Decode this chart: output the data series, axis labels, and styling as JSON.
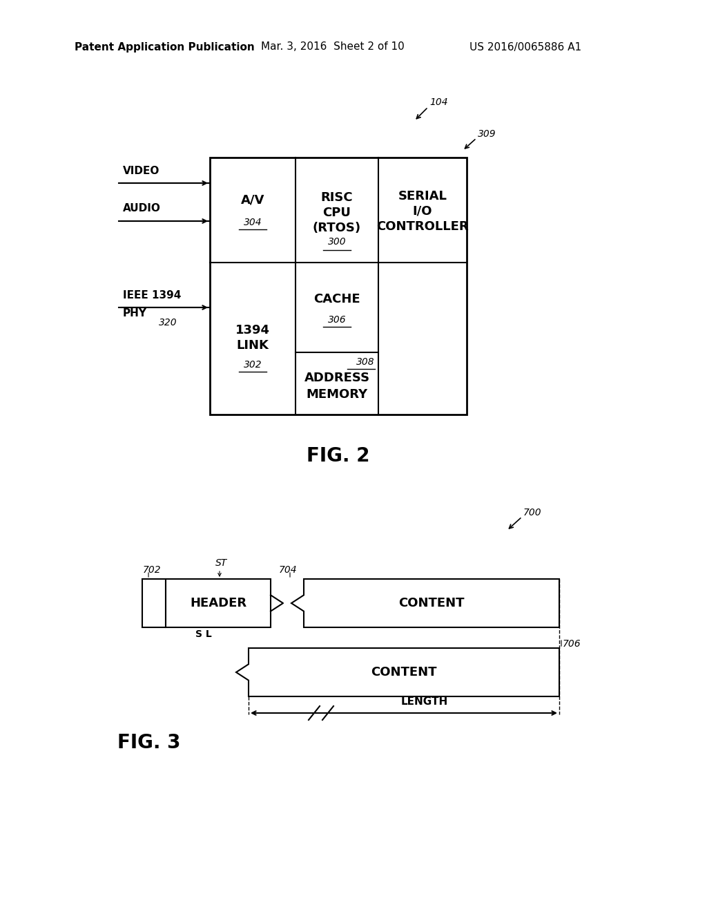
{
  "bg_color": "#ffffff",
  "header_text": [
    "Patent Application Publication",
    "Mar. 3, 2016  Sheet 2 of 10",
    "US 2016/0065886 A1"
  ],
  "header_fontsize": 11,
  "fig2_label": "FIG. 2",
  "fig3_label": "FIG. 3"
}
